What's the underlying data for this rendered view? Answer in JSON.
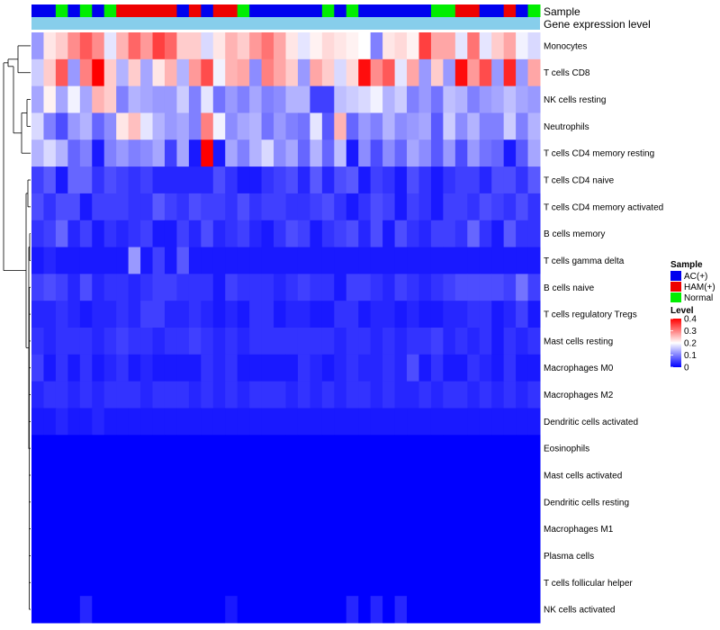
{
  "chart_data": {
    "type": "heatmap",
    "title": "",
    "annotation_rows": [
      "Sample",
      "Gene expression level"
    ],
    "sample_groups": [
      "AC",
      "AC",
      "N",
      "AC",
      "N",
      "AC",
      "N",
      "H",
      "H",
      "H",
      "H",
      "H",
      "AC",
      "H",
      "AC",
      "H",
      "H",
      "N",
      "AC",
      "AC",
      "AC",
      "AC",
      "AC",
      "AC",
      "N",
      "AC",
      "N",
      "AC",
      "AC",
      "AC",
      "AC",
      "AC",
      "AC",
      "N",
      "N",
      "H",
      "H",
      "AC",
      "AC",
      "H",
      "AC",
      "N"
    ],
    "group_colors": {
      "AC": "#0000ee",
      "H": "#ee0000",
      "N": "#00ee00"
    },
    "expression_bar_color": "#87ceeb",
    "rows": [
      {
        "label": "Monocytes",
        "values": [
          0.12,
          0.22,
          0.24,
          0.29,
          0.33,
          0.29,
          0.18,
          0.26,
          0.32,
          0.28,
          0.35,
          0.32,
          0.24,
          0.24,
          0.17,
          0.22,
          0.26,
          0.24,
          0.28,
          0.31,
          0.27,
          0.22,
          0.18,
          0.21,
          0.23,
          0.22,
          0.21,
          0.2,
          0.1,
          0.22,
          0.23,
          0.21,
          0.35,
          0.27,
          0.27,
          0.18,
          0.31,
          0.18,
          0.24,
          0.27,
          0.19,
          0.17
        ]
      },
      {
        "label": "T cells CD8",
        "values": [
          0.16,
          0.24,
          0.33,
          0.12,
          0.3,
          0.4,
          0.24,
          0.14,
          0.24,
          0.13,
          0.22,
          0.26,
          0.14,
          0.28,
          0.34,
          0.19,
          0.26,
          0.27,
          0.11,
          0.3,
          0.27,
          0.24,
          0.12,
          0.27,
          0.24,
          0.17,
          0.23,
          0.39,
          0.29,
          0.33,
          0.18,
          0.27,
          0.12,
          0.24,
          0.12,
          0.39,
          0.28,
          0.34,
          0.12,
          0.37,
          0.12,
          0.27
        ]
      },
      {
        "label": "NK cells resting",
        "values": [
          0.13,
          0.21,
          0.13,
          0.19,
          0.13,
          0.26,
          0.24,
          0.1,
          0.14,
          0.13,
          0.12,
          0.12,
          0.16,
          0.1,
          0.18,
          0.09,
          0.12,
          0.1,
          0.13,
          0.1,
          0.11,
          0.14,
          0.14,
          0.05,
          0.05,
          0.15,
          0.16,
          0.17,
          0.19,
          0.14,
          0.16,
          0.1,
          0.12,
          0.09,
          0.15,
          0.14,
          0.1,
          0.12,
          0.13,
          0.15,
          0.13,
          0.12
        ]
      },
      {
        "label": "Neutrophils",
        "values": [
          0.17,
          0.1,
          0.06,
          0.12,
          0.14,
          0.08,
          0.11,
          0.22,
          0.25,
          0.18,
          0.14,
          0.12,
          0.13,
          0.1,
          0.3,
          0.19,
          0.11,
          0.13,
          0.14,
          0.09,
          0.12,
          0.1,
          0.09,
          0.18,
          0.07,
          0.26,
          0.08,
          0.12,
          0.1,
          0.14,
          0.11,
          0.12,
          0.13,
          0.07,
          0.16,
          0.11,
          0.14,
          0.1,
          0.1,
          0.16,
          0.1,
          0.14
        ]
      },
      {
        "label": "T cells CD4 memory resting",
        "values": [
          0.14,
          0.17,
          0.14,
          0.08,
          0.1,
          0.02,
          0.1,
          0.12,
          0.1,
          0.11,
          0.13,
          0.05,
          0.13,
          0.02,
          0.4,
          0.02,
          0.13,
          0.1,
          0.14,
          0.17,
          0.11,
          0.13,
          0.08,
          0.14,
          0.08,
          0.15,
          0.02,
          0.11,
          0.06,
          0.11,
          0.08,
          0.13,
          0.11,
          0.07,
          0.12,
          0.06,
          0.12,
          0.09,
          0.08,
          0.02,
          0.07,
          0.13
        ]
      },
      {
        "label": "T cells CD4 naive",
        "values": [
          0.05,
          0.07,
          0.02,
          0.08,
          0.08,
          0.04,
          0.06,
          0.05,
          0.04,
          0.05,
          0.03,
          0.03,
          0.03,
          0.03,
          0.03,
          0.06,
          0.04,
          0.02,
          0.02,
          0.04,
          0.05,
          0.06,
          0.03,
          0.07,
          0.03,
          0.06,
          0.07,
          0.02,
          0.05,
          0.04,
          0.02,
          0.06,
          0.04,
          0.02,
          0.04,
          0.05,
          0.05,
          0.03,
          0.06,
          0.06,
          0.04,
          0.07
        ]
      },
      {
        "label": "T cells CD4 memory activated",
        "values": [
          0.06,
          0.04,
          0.06,
          0.06,
          0.02,
          0.05,
          0.05,
          0.05,
          0.04,
          0.04,
          0.07,
          0.05,
          0.04,
          0.06,
          0.05,
          0.05,
          0.04,
          0.06,
          0.04,
          0.05,
          0.05,
          0.04,
          0.04,
          0.05,
          0.06,
          0.04,
          0.02,
          0.04,
          0.06,
          0.05,
          0.02,
          0.05,
          0.04,
          0.02,
          0.05,
          0.05,
          0.04,
          0.06,
          0.05,
          0.04,
          0.06,
          0.04
        ]
      },
      {
        "label": "B cells memory",
        "values": [
          0.04,
          0.05,
          0.08,
          0.03,
          0.05,
          0.02,
          0.04,
          0.03,
          0.04,
          0.05,
          0.02,
          0.02,
          0.05,
          0.03,
          0.06,
          0.03,
          0.04,
          0.05,
          0.03,
          0.02,
          0.04,
          0.06,
          0.05,
          0.02,
          0.04,
          0.05,
          0.06,
          0.03,
          0.06,
          0.02,
          0.06,
          0.04,
          0.03,
          0.05,
          0.05,
          0.04,
          0.08,
          0.04,
          0.02,
          0.07,
          0.04,
          0.04
        ]
      },
      {
        "label": "T cells gamma delta",
        "values": [
          0.02,
          0.03,
          0.02,
          0.02,
          0.02,
          0.02,
          0.02,
          0.02,
          0.12,
          0.02,
          0.05,
          0.02,
          0.07,
          0.02,
          0.02,
          0.02,
          0.02,
          0.02,
          0.02,
          0.02,
          0.02,
          0.02,
          0.02,
          0.02,
          0.02,
          0.02,
          0.02,
          0.02,
          0.02,
          0.02,
          0.02,
          0.02,
          0.02,
          0.02,
          0.02,
          0.02,
          0.02,
          0.02,
          0.02,
          0.02,
          0.02,
          0.02
        ]
      },
      {
        "label": "B cells naive",
        "values": [
          0.05,
          0.06,
          0.05,
          0.03,
          0.06,
          0.03,
          0.04,
          0.04,
          0.03,
          0.04,
          0.05,
          0.05,
          0.04,
          0.04,
          0.04,
          0.02,
          0.05,
          0.04,
          0.04,
          0.04,
          0.03,
          0.04,
          0.05,
          0.04,
          0.04,
          0.02,
          0.05,
          0.05,
          0.04,
          0.03,
          0.05,
          0.04,
          0.03,
          0.04,
          0.05,
          0.06,
          0.06,
          0.06,
          0.06,
          0.05,
          0.09,
          0.05
        ]
      },
      {
        "label": "T cells regulatory  Tregs",
        "values": [
          0.03,
          0.03,
          0.04,
          0.03,
          0.02,
          0.03,
          0.03,
          0.04,
          0.03,
          0.05,
          0.05,
          0.03,
          0.03,
          0.04,
          0.03,
          0.02,
          0.03,
          0.02,
          0.04,
          0.04,
          0.02,
          0.03,
          0.03,
          0.02,
          0.02,
          0.04,
          0.04,
          0.02,
          0.03,
          0.03,
          0.02,
          0.03,
          0.02,
          0.02,
          0.03,
          0.03,
          0.04,
          0.04,
          0.02,
          0.03,
          0.05,
          0.02
        ]
      },
      {
        "label": "Mast cells resting",
        "values": [
          0.04,
          0.03,
          0.04,
          0.04,
          0.04,
          0.03,
          0.04,
          0.05,
          0.04,
          0.04,
          0.03,
          0.04,
          0.04,
          0.05,
          0.04,
          0.03,
          0.04,
          0.03,
          0.04,
          0.04,
          0.04,
          0.04,
          0.04,
          0.04,
          0.04,
          0.03,
          0.04,
          0.04,
          0.03,
          0.04,
          0.03,
          0.04,
          0.04,
          0.05,
          0.03,
          0.04,
          0.03,
          0.04,
          0.02,
          0.04,
          0.03,
          0.04
        ]
      },
      {
        "label": "Macrophages M0",
        "values": [
          0.05,
          0.02,
          0.04,
          0.02,
          0.04,
          0.02,
          0.03,
          0.04,
          0.02,
          0.03,
          0.02,
          0.02,
          0.02,
          0.02,
          0.04,
          0.03,
          0.04,
          0.02,
          0.02,
          0.02,
          0.02,
          0.02,
          0.04,
          0.03,
          0.02,
          0.03,
          0.04,
          0.03,
          0.03,
          0.04,
          0.03,
          0.06,
          0.02,
          0.04,
          0.02,
          0.02,
          0.04,
          0.03,
          0.02,
          0.04,
          0.02,
          0.02
        ]
      },
      {
        "label": "Macrophages M2",
        "values": [
          0.03,
          0.04,
          0.04,
          0.03,
          0.04,
          0.03,
          0.04,
          0.04,
          0.04,
          0.03,
          0.04,
          0.04,
          0.04,
          0.03,
          0.04,
          0.03,
          0.04,
          0.03,
          0.04,
          0.04,
          0.04,
          0.03,
          0.04,
          0.03,
          0.04,
          0.03,
          0.04,
          0.04,
          0.03,
          0.04,
          0.03,
          0.03,
          0.04,
          0.03,
          0.04,
          0.04,
          0.03,
          0.04,
          0.03,
          0.04,
          0.03,
          0.04
        ]
      },
      {
        "label": "Dendritic cells activated",
        "values": [
          0.02,
          0.02,
          0.03,
          0.02,
          0.02,
          0.03,
          0.02,
          0.02,
          0.02,
          0.02,
          0.02,
          0.02,
          0.02,
          0.02,
          0.02,
          0.02,
          0.02,
          0.02,
          0.02,
          0.02,
          0.02,
          0.02,
          0.02,
          0.02,
          0.02,
          0.02,
          0.02,
          0.02,
          0.02,
          0.02,
          0.02,
          0.02,
          0.02,
          0.02,
          0.02,
          0.02,
          0.02,
          0.02,
          0.02,
          0.02,
          0.02,
          0.02
        ]
      },
      {
        "label": "Eosinophils",
        "values": [
          0,
          0,
          0,
          0,
          0,
          0,
          0,
          0,
          0,
          0,
          0,
          0,
          0,
          0,
          0,
          0,
          0,
          0,
          0,
          0,
          0,
          0,
          0,
          0,
          0,
          0,
          0,
          0,
          0,
          0,
          0,
          0,
          0,
          0,
          0,
          0,
          0,
          0,
          0,
          0,
          0,
          0
        ]
      },
      {
        "label": "Mast cells activated",
        "values": [
          0,
          0,
          0,
          0,
          0,
          0,
          0,
          0,
          0,
          0,
          0,
          0,
          0,
          0,
          0,
          0,
          0,
          0,
          0,
          0,
          0,
          0,
          0,
          0,
          0,
          0,
          0,
          0,
          0,
          0,
          0,
          0,
          0,
          0,
          0,
          0,
          0,
          0,
          0,
          0,
          0,
          0
        ]
      },
      {
        "label": "Dendritic cells resting",
        "values": [
          0,
          0,
          0,
          0,
          0,
          0,
          0,
          0,
          0,
          0,
          0,
          0,
          0,
          0,
          0,
          0,
          0,
          0,
          0,
          0,
          0,
          0,
          0,
          0,
          0,
          0,
          0,
          0,
          0,
          0,
          0,
          0,
          0,
          0,
          0,
          0,
          0,
          0,
          0,
          0,
          0,
          0
        ]
      },
      {
        "label": "Macrophages M1",
        "values": [
          0,
          0,
          0,
          0,
          0,
          0,
          0,
          0,
          0,
          0,
          0,
          0,
          0,
          0,
          0,
          0,
          0,
          0,
          0,
          0,
          0,
          0,
          0,
          0,
          0,
          0,
          0,
          0,
          0,
          0,
          0,
          0,
          0,
          0,
          0,
          0,
          0,
          0,
          0,
          0,
          0,
          0
        ]
      },
      {
        "label": "Plasma cells",
        "values": [
          0,
          0,
          0,
          0,
          0,
          0,
          0,
          0,
          0,
          0,
          0,
          0,
          0,
          0,
          0,
          0,
          0,
          0,
          0,
          0,
          0,
          0,
          0,
          0,
          0,
          0,
          0,
          0,
          0,
          0,
          0,
          0,
          0,
          0,
          0,
          0,
          0,
          0,
          0,
          0,
          0,
          0
        ]
      },
      {
        "label": "T cells follicular helper",
        "values": [
          0,
          0,
          0,
          0,
          0,
          0,
          0,
          0,
          0,
          0,
          0,
          0,
          0,
          0,
          0,
          0,
          0,
          0,
          0,
          0,
          0,
          0,
          0,
          0,
          0,
          0,
          0,
          0,
          0,
          0,
          0,
          0,
          0,
          0,
          0,
          0,
          0,
          0,
          0,
          0,
          0,
          0
        ]
      },
      {
        "label": "NK cells activated",
        "values": [
          0,
          0,
          0,
          0,
          0.03,
          0,
          0,
          0,
          0,
          0,
          0,
          0,
          0,
          0,
          0,
          0,
          0.02,
          0,
          0,
          0,
          0,
          0,
          0,
          0,
          0,
          0,
          0.03,
          0,
          0.03,
          0,
          0.03,
          0,
          0,
          0,
          0,
          0,
          0,
          0,
          0,
          0,
          0,
          0
        ]
      }
    ],
    "color_scale": {
      "low": "#0000ff",
      "mid": "#ffffff",
      "high": "#ff0000",
      "min": 0,
      "mid_value": 0.2,
      "max": 0.4
    },
    "legend": {
      "sample_title": "Sample",
      "sample_items": [
        {
          "label": "AC(+)",
          "group": "AC"
        },
        {
          "label": "HAM(+)",
          "group": "H"
        },
        {
          "label": "Normal",
          "group": "N"
        }
      ],
      "level_title": "Level",
      "level_ticks": [
        "0.4",
        "0.3",
        "0.2",
        "0.1",
        "0"
      ],
      "level_tick_values": [
        0.4,
        0.3,
        0.2,
        0.1,
        0
      ]
    }
  }
}
